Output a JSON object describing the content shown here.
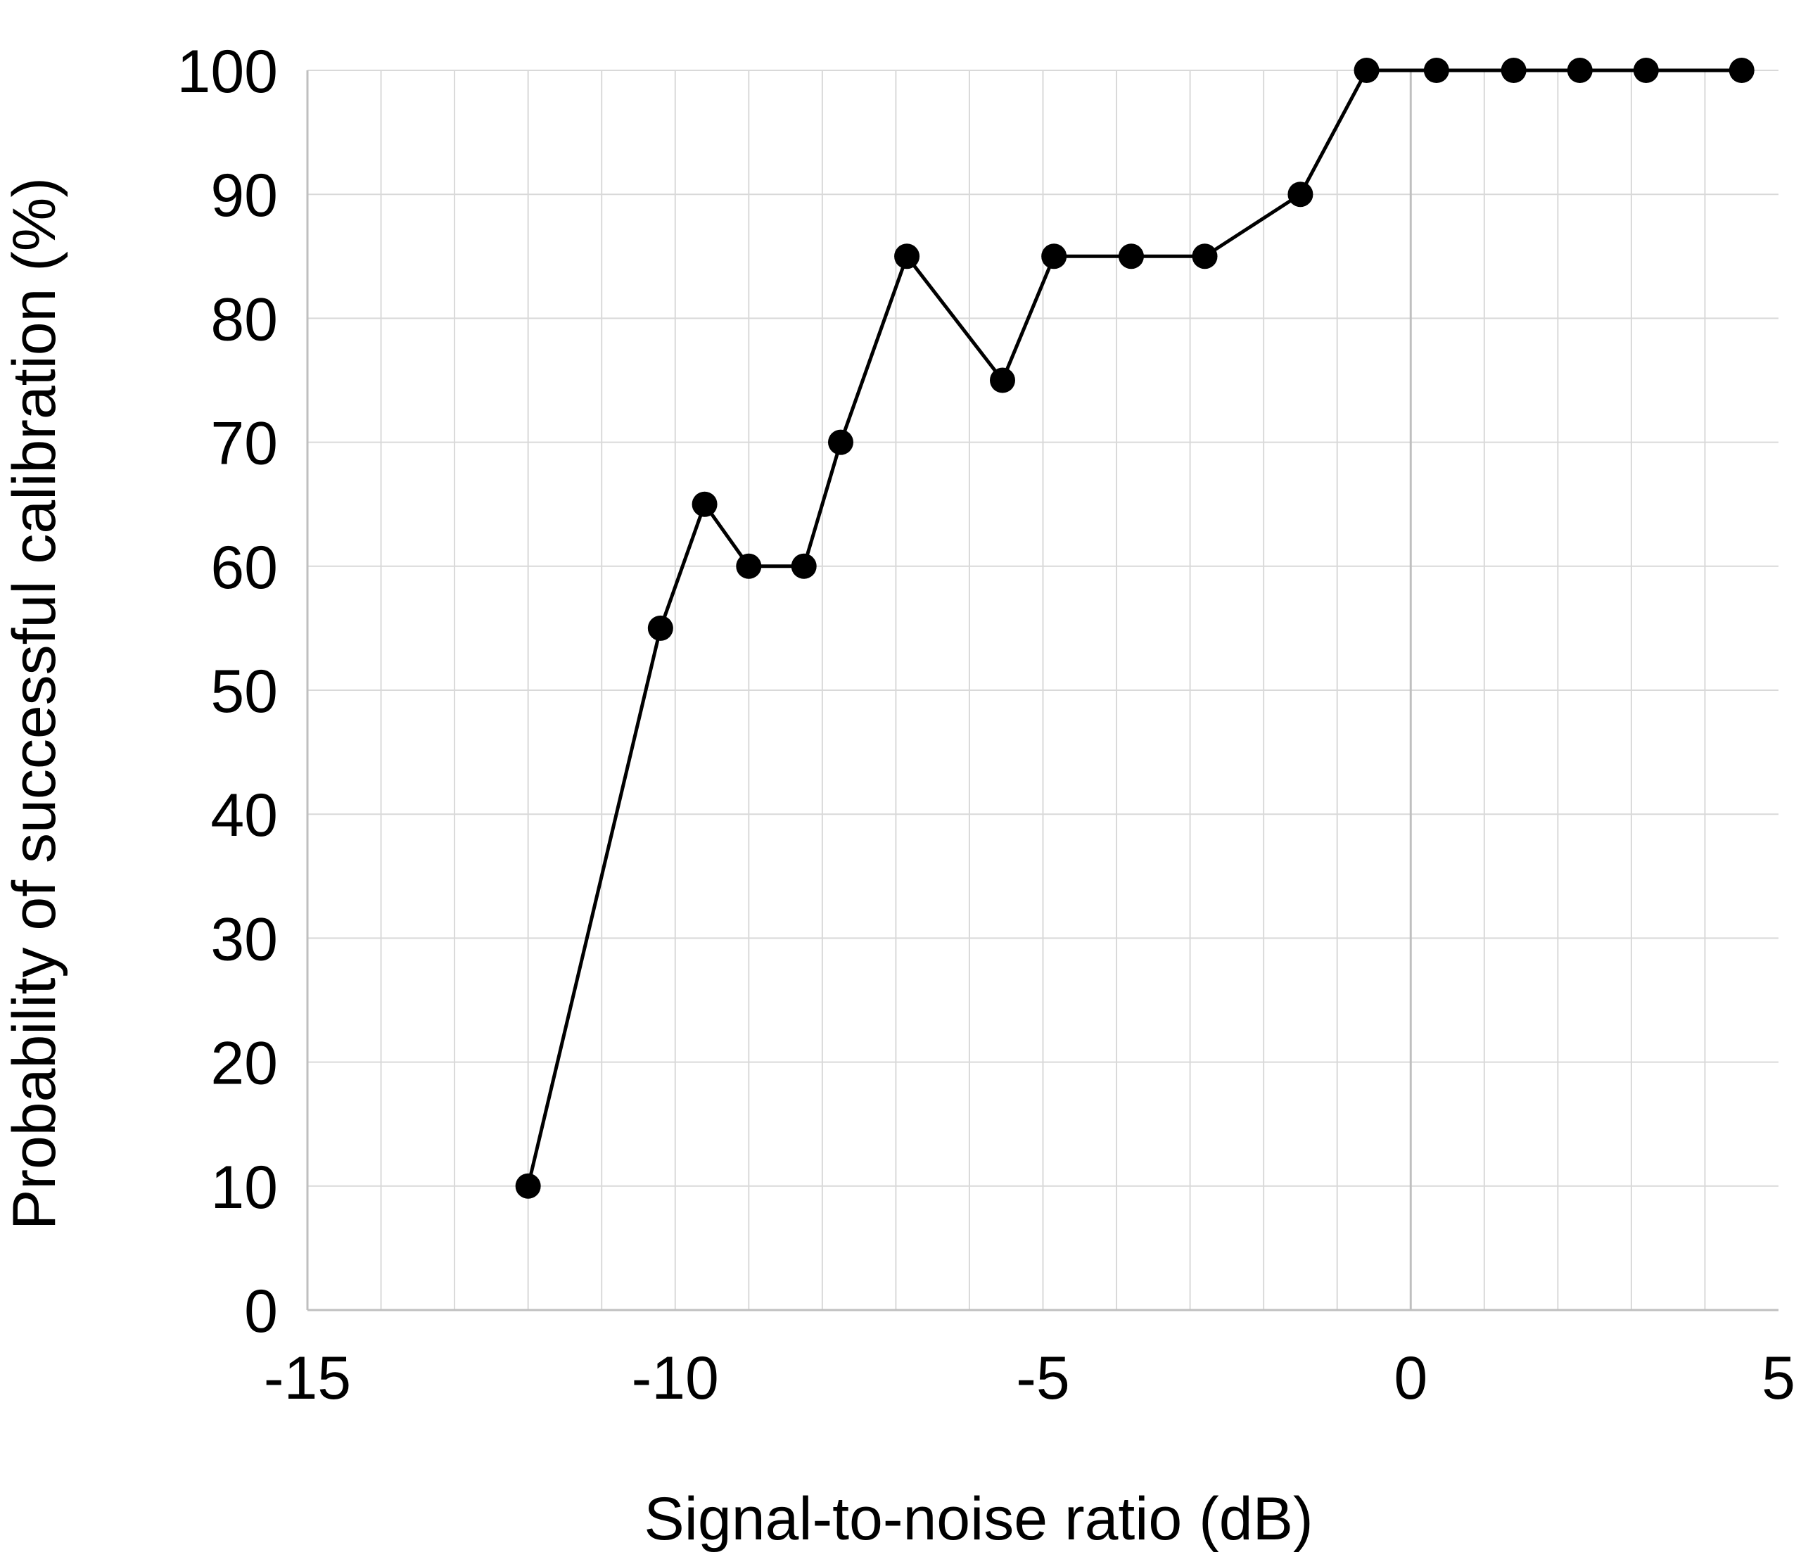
{
  "chart_data": {
    "type": "line",
    "title": "",
    "xlabel": "Signal-to-noise ratio (dB)",
    "ylabel": "Probability of successful calibration (%)",
    "xlim": [
      -15,
      5
    ],
    "ylim": [
      0,
      100
    ],
    "x_ticks": [
      -15,
      -10,
      -5,
      0,
      5
    ],
    "x_tick_labels": [
      "-15",
      "-10",
      "-5",
      "0",
      "5"
    ],
    "y_ticks": [
      0,
      10,
      20,
      30,
      40,
      50,
      60,
      70,
      80,
      90,
      100
    ],
    "y_tick_labels": [
      "0",
      "10",
      "20",
      "30",
      "40",
      "50",
      "60",
      "70",
      "80",
      "90",
      "100"
    ],
    "grid": true,
    "legend": "none",
    "colors": {
      "line": "#000000",
      "marker": "#000000",
      "grid": "#d9d9d9",
      "zero_line": "#bfbfbf"
    },
    "series": [
      {
        "x": [
          -12.0,
          -10.2,
          -9.6,
          -9.0,
          -8.25,
          -7.75,
          -6.85,
          -5.55,
          -4.85,
          -3.8,
          -2.8,
          -1.5,
          -0.6,
          0.35,
          1.4,
          2.3,
          3.2,
          4.5
        ],
        "y": [
          10,
          55,
          65,
          60,
          60,
          70,
          85,
          75,
          85,
          85,
          85,
          90,
          100,
          100,
          100,
          100,
          100,
          100
        ]
      }
    ]
  }
}
